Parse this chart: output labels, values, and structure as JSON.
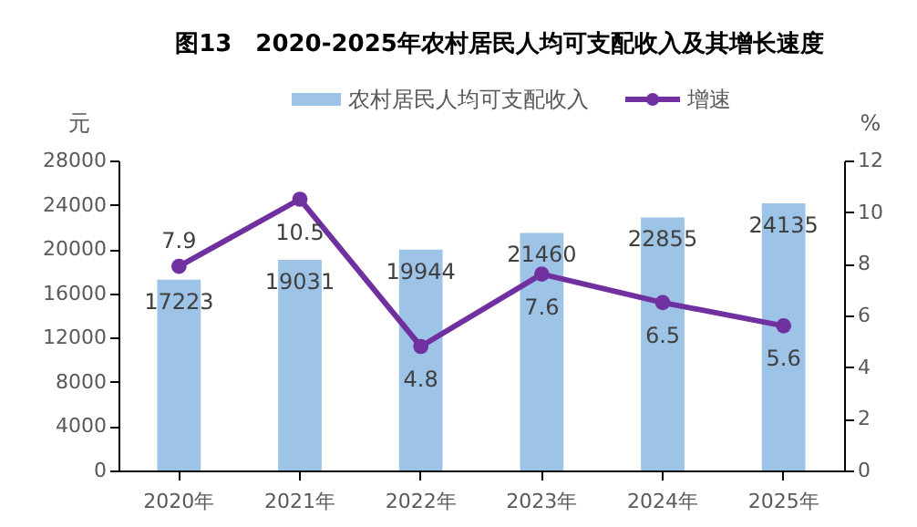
{
  "chart_data": {
    "type": "bar",
    "title": "图13　2020-2025年农村居民人均可支配收入及其增长速度",
    "categories": [
      "2020年",
      "2021年",
      "2022年",
      "2023年",
      "2024年",
      "2025年"
    ],
    "series": [
      {
        "name": "农村居民人均可支配收入",
        "color": "#9dc3e6",
        "values": [
          17223,
          19031,
          19944,
          21460,
          22855,
          24135
        ]
      },
      {
        "name": "增速",
        "type": "line",
        "axis": "y2",
        "color": "#7030a0",
        "marker": "circle",
        "values": [
          7.9,
          10.5,
          4.8,
          7.6,
          6.5,
          5.6
        ]
      }
    ],
    "ylabel": "元",
    "y2label": "%",
    "ylim": [
      0,
      28000
    ],
    "yticks": [
      0,
      4000,
      8000,
      12000,
      16000,
      20000,
      24000,
      28000
    ],
    "y2lim": [
      0,
      12
    ],
    "y2ticks": [
      0,
      2,
      4,
      6,
      8,
      10,
      12
    ],
    "data_labels": true,
    "legend": "top",
    "grid": false
  }
}
